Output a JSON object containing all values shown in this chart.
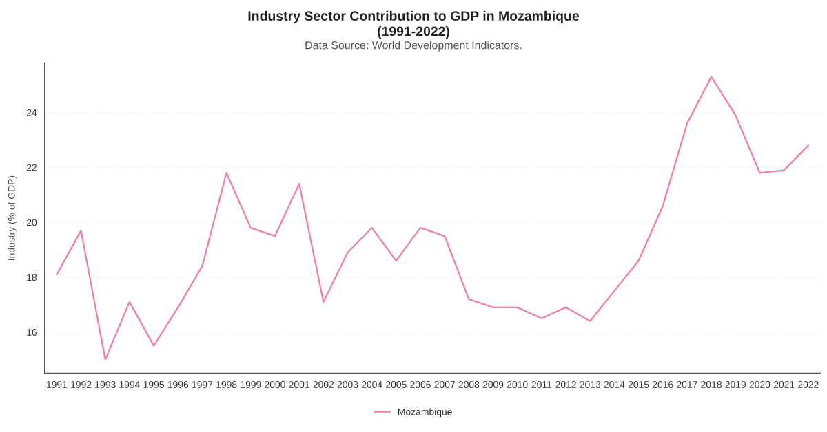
{
  "chart_data": {
    "type": "line",
    "title": "Industry Sector Contribution to GDP in Mozambique\n(1991-2022)",
    "subtitle": "Data Source: World Development Indicators.",
    "ylabel": "Industry (% of GDP)",
    "categories": [
      "1991",
      "1992",
      "1993",
      "1994",
      "1995",
      "1996",
      "1997",
      "1998",
      "1999",
      "2000",
      "2001",
      "2002",
      "2003",
      "2004",
      "2005",
      "2006",
      "2007",
      "2008",
      "2009",
      "2010",
      "2011",
      "2012",
      "2013",
      "2014",
      "2015",
      "2016",
      "2017",
      "2018",
      "2019",
      "2020",
      "2021",
      "2022"
    ],
    "series": [
      {
        "name": "Mozambique",
        "color": "#f27fa8",
        "values": [
          18.1,
          19.7,
          15.0,
          17.1,
          15.5,
          16.9,
          18.4,
          21.8,
          19.8,
          19.5,
          21.4,
          17.1,
          18.9,
          19.8,
          18.6,
          19.8,
          19.5,
          17.2,
          16.9,
          16.9,
          16.5,
          16.9,
          16.4,
          17.5,
          18.6,
          20.6,
          23.6,
          25.3,
          23.9,
          21.8,
          21.9,
          22.8
        ]
      }
    ],
    "ylim": [
      14.5,
      25.8
    ],
    "yticks": [
      16,
      18,
      20,
      22,
      24
    ],
    "grid": "y",
    "legend": "bottom",
    "marker": "none",
    "line_style": "solid"
  }
}
